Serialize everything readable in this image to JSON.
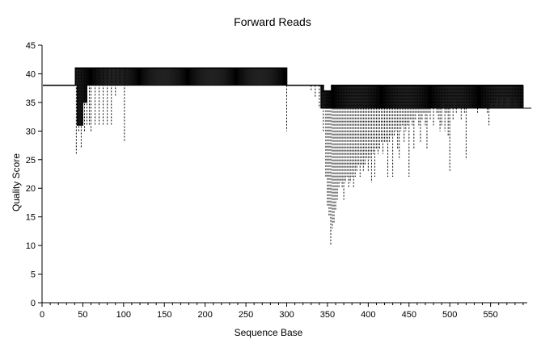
{
  "chart_data": {
    "type": "line",
    "title": "Forward Reads",
    "xlabel": "Sequence Base",
    "ylabel": "Quality Score",
    "xlim": [
      0,
      595
    ],
    "ylim": [
      0,
      45
    ],
    "x_ticks": [
      0,
      50,
      100,
      150,
      200,
      250,
      300,
      350,
      400,
      450,
      500,
      550
    ],
    "y_ticks": [
      0,
      5,
      10,
      15,
      20,
      25,
      30,
      35,
      40,
      45
    ],
    "grid": false,
    "series": [
      {
        "role": "median",
        "points": [
          [
            1,
            38
          ],
          [
            40,
            38
          ],
          [
            41,
            41
          ],
          [
            42,
            41
          ],
          [
            299,
            41
          ],
          [
            300,
            38
          ],
          [
            340,
            38
          ],
          [
            345,
            37
          ],
          [
            350,
            37
          ],
          [
            355,
            38
          ],
          [
            590,
            38
          ]
        ]
      },
      {
        "role": "lower-quartile",
        "points": [
          [
            1,
            38
          ],
          [
            42,
            38
          ],
          [
            43,
            31
          ],
          [
            48,
            31
          ],
          [
            50,
            35
          ],
          [
            55,
            38
          ],
          [
            299,
            41
          ],
          [
            300,
            38
          ],
          [
            340,
            38
          ],
          [
            342,
            34
          ],
          [
            600,
            34
          ]
        ]
      }
    ],
    "whisker_min": [
      [
        42,
        26
      ],
      [
        45,
        30
      ],
      [
        48,
        27
      ],
      [
        52,
        30
      ],
      [
        55,
        31
      ],
      [
        58,
        31
      ],
      [
        60,
        30
      ],
      [
        65,
        31
      ],
      [
        70,
        31
      ],
      [
        75,
        31
      ],
      [
        80,
        31
      ],
      [
        85,
        31
      ],
      [
        90,
        36
      ],
      [
        95,
        38
      ],
      [
        101,
        28
      ],
      [
        300,
        30
      ],
      [
        330,
        37
      ],
      [
        335,
        36
      ],
      [
        340,
        34
      ],
      [
        345,
        30
      ],
      [
        348,
        22
      ],
      [
        350,
        17
      ],
      [
        352,
        15
      ],
      [
        354,
        10
      ],
      [
        356,
        13
      ],
      [
        358,
        14
      ],
      [
        360,
        16
      ],
      [
        362,
        18
      ],
      [
        364,
        20
      ],
      [
        366,
        21
      ],
      [
        368,
        20
      ],
      [
        370,
        18
      ],
      [
        372,
        21
      ],
      [
        374,
        22
      ],
      [
        376,
        20
      ],
      [
        378,
        21
      ],
      [
        380,
        22
      ],
      [
        382,
        20
      ],
      [
        384,
        22
      ],
      [
        386,
        23
      ],
      [
        388,
        24
      ],
      [
        390,
        22
      ],
      [
        392,
        24
      ],
      [
        394,
        23
      ],
      [
        396,
        24
      ],
      [
        398,
        25
      ],
      [
        400,
        23
      ],
      [
        402,
        25
      ],
      [
        404,
        21
      ],
      [
        406,
        26
      ],
      [
        408,
        22
      ],
      [
        410,
        27
      ],
      [
        412,
        26
      ],
      [
        414,
        27
      ],
      [
        416,
        28
      ],
      [
        418,
        26
      ],
      [
        420,
        28
      ],
      [
        422,
        28
      ],
      [
        424,
        22
      ],
      [
        426,
        28
      ],
      [
        428,
        29
      ],
      [
        430,
        22
      ],
      [
        432,
        29
      ],
      [
        434,
        30
      ],
      [
        436,
        27
      ],
      [
        438,
        25
      ],
      [
        440,
        30
      ],
      [
        442,
        31
      ],
      [
        444,
        28
      ],
      [
        446,
        30
      ],
      [
        448,
        31
      ],
      [
        450,
        22
      ],
      [
        452,
        32
      ],
      [
        454,
        31
      ],
      [
        456,
        27
      ],
      [
        458,
        32
      ],
      [
        460,
        33
      ],
      [
        462,
        31
      ],
      [
        464,
        28
      ],
      [
        466,
        32
      ],
      [
        468,
        33
      ],
      [
        470,
        31
      ],
      [
        472,
        27
      ],
      [
        474,
        33
      ],
      [
        476,
        32
      ],
      [
        478,
        34
      ],
      [
        480,
        31
      ],
      [
        482,
        34
      ],
      [
        484,
        33
      ],
      [
        486,
        32
      ],
      [
        488,
        30
      ],
      [
        490,
        31
      ],
      [
        492,
        35
      ],
      [
        494,
        30
      ],
      [
        496,
        33
      ],
      [
        498,
        29
      ],
      [
        500,
        23
      ],
      [
        502,
        34
      ],
      [
        504,
        32
      ],
      [
        506,
        35
      ],
      [
        508,
        33
      ],
      [
        510,
        34
      ],
      [
        512,
        34
      ],
      [
        514,
        32
      ],
      [
        516,
        34
      ],
      [
        518,
        33
      ],
      [
        520,
        25
      ],
      [
        522,
        35
      ],
      [
        524,
        34
      ],
      [
        526,
        35
      ],
      [
        528,
        34
      ],
      [
        530,
        34
      ],
      [
        532,
        36
      ],
      [
        534,
        33
      ],
      [
        536,
        35
      ],
      [
        538,
        34
      ],
      [
        540,
        35
      ],
      [
        542,
        36
      ],
      [
        544,
        34
      ],
      [
        546,
        33
      ],
      [
        548,
        31
      ],
      [
        550,
        35
      ],
      [
        552,
        35
      ],
      [
        554,
        34
      ],
      [
        556,
        35
      ],
      [
        558,
        36
      ],
      [
        560,
        34
      ],
      [
        562,
        35
      ],
      [
        564,
        36
      ],
      [
        566,
        34
      ],
      [
        568,
        35
      ],
      [
        570,
        36
      ],
      [
        572,
        36
      ],
      [
        574,
        35
      ],
      [
        576,
        34
      ],
      [
        578,
        35
      ],
      [
        580,
        36
      ],
      [
        582,
        35
      ],
      [
        584,
        36
      ],
      [
        586,
        34
      ],
      [
        588,
        35
      ],
      [
        590,
        34
      ]
    ]
  }
}
